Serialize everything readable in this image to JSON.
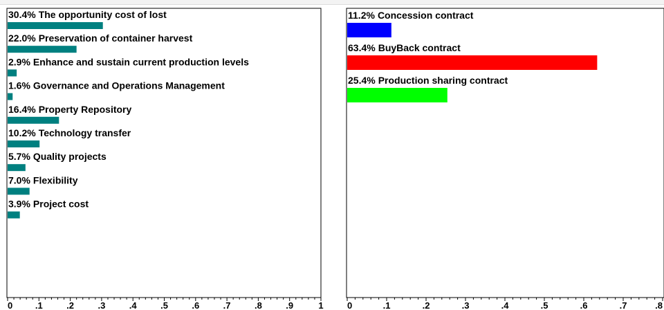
{
  "chart_data": [
    {
      "type": "bar",
      "orientation": "horizontal",
      "bar_color": "#008080",
      "xlim": [
        0,
        1
      ],
      "x_tick_labels": [
        "0",
        ".1",
        ".2",
        ".3",
        ".4",
        ".5",
        ".6",
        ".7",
        ".8",
        ".9",
        "1"
      ],
      "categories": [
        {
          "label": "The opportunity cost of lost",
          "pct_label": "30.4%",
          "value": 0.304
        },
        {
          "label": "Preservation of container harvest",
          "pct_label": "22.0%",
          "value": 0.22
        },
        {
          "label": "Enhance and sustain current production levels",
          "pct_label": "2.9%",
          "value": 0.029
        },
        {
          "label": "Governance and Operations Management",
          "pct_label": "1.6%",
          "value": 0.016
        },
        {
          "label": "Property Repository",
          "pct_label": "16.4%",
          "value": 0.164
        },
        {
          "label": "Technology transfer",
          "pct_label": "10.2%",
          "value": 0.102
        },
        {
          "label": "Quality projects",
          "pct_label": "5.7%",
          "value": 0.057
        },
        {
          "label": "Flexibility",
          "pct_label": "7.0%",
          "value": 0.07
        },
        {
          "label": "Project cost",
          "pct_label": "3.9%",
          "value": 0.039
        }
      ]
    },
    {
      "type": "bar",
      "orientation": "horizontal",
      "xlim": [
        0,
        0.8
      ],
      "x_tick_labels": [
        "0",
        ".1",
        ".2",
        ".3",
        ".4",
        ".5",
        ".6",
        ".7",
        ".8"
      ],
      "categories": [
        {
          "label": "Concession contract",
          "pct_label": "11.2%",
          "value": 0.112,
          "color": "#0000ff"
        },
        {
          "label": "BuyBack contract",
          "pct_label": "63.4%",
          "value": 0.634,
          "color": "#ff0000"
        },
        {
          "label": "Production sharing contract",
          "pct_label": "25.4%",
          "value": 0.254,
          "color": "#00ff00"
        }
      ]
    }
  ]
}
